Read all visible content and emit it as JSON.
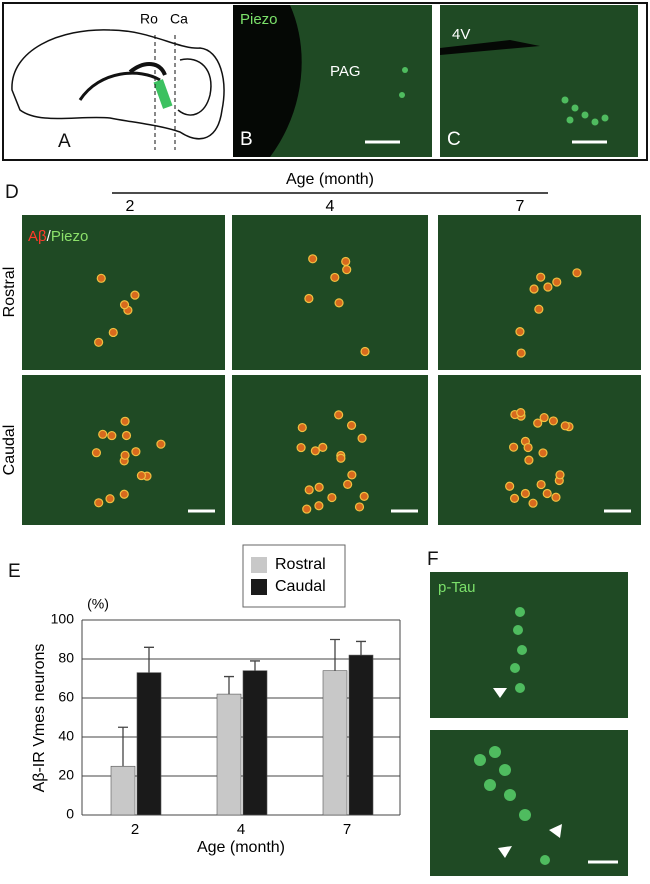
{
  "panel_a": {
    "label": "A",
    "cuts": [
      "Ro",
      "Ca"
    ]
  },
  "panel_b": {
    "label": "B",
    "stain": "Piezo",
    "region": "PAG"
  },
  "panel_c": {
    "label": "C",
    "region": "4V"
  },
  "panel_d": {
    "label": "D",
    "axis_title": "Age (month)",
    "columns": [
      "2",
      "4",
      "7"
    ],
    "stain": [
      "Aβ",
      "/",
      "Piezo"
    ],
    "rows": [
      "Rostral",
      "Caudal"
    ]
  },
  "chart_data": {
    "type": "bar",
    "panel_label": "E",
    "unit": "(%)",
    "ylabel": "Aβ-IR Vmes neurons",
    "xlabel": "Age (month)",
    "categories": [
      "2",
      "4",
      "7"
    ],
    "series": [
      {
        "name": "Rostral",
        "color": "#c8c8c8",
        "values": [
          25,
          62,
          74
        ],
        "errors": [
          20,
          9,
          16
        ]
      },
      {
        "name": "Caudal",
        "color": "#1a1a1a",
        "values": [
          73,
          74,
          82
        ],
        "errors": [
          13,
          5,
          7
        ]
      }
    ],
    "ylim": [
      0,
      100
    ],
    "yticks": [
      0,
      20,
      40,
      60,
      80,
      100
    ],
    "grid": true,
    "legend": "top"
  },
  "panel_f": {
    "label": "F",
    "stain": "p-Tau"
  }
}
